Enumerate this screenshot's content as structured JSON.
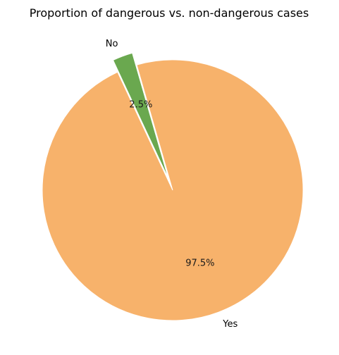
{
  "chart_data": {
    "type": "pie",
    "title": "Proportion of dangerous vs. non-dangerous cases",
    "slices": [
      {
        "label": "Yes",
        "value": 97.5,
        "pct_label": "97.5%",
        "color": "#f7b26b",
        "explode": false
      },
      {
        "label": "No",
        "value": 2.5,
        "pct_label": "2.5%",
        "color": "#6aa84f",
        "explode": true
      }
    ],
    "start_angle_deg": 115,
    "direction": "counterclockwise",
    "legend": "none"
  }
}
